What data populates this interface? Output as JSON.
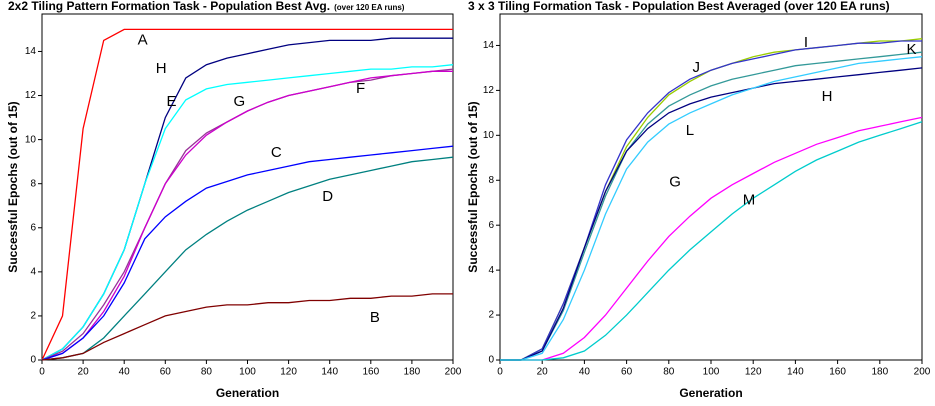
{
  "chart_data": [
    {
      "type": "line",
      "title": "2x2 Tiling Pattern Formation Task - Population Best Avg.",
      "subtitle": "(over 120 EA runs)",
      "x_label": "Generation",
      "y_label": "Successful Epochs (out of 15)",
      "x": [
        0,
        10,
        20,
        30,
        40,
        50,
        60,
        70,
        80,
        90,
        100,
        110,
        120,
        130,
        140,
        150,
        160,
        170,
        180,
        190,
        200
      ],
      "xlim": [
        0,
        200
      ],
      "xticks": [
        0,
        20,
        40,
        60,
        80,
        100,
        120,
        140,
        160,
        180,
        200
      ],
      "ylim": [
        0,
        15.7
      ],
      "yticks": [
        0,
        2,
        4,
        6,
        8,
        10,
        12,
        14
      ],
      "series": [
        {
          "name": "A",
          "color": "#ff0000",
          "values": [
            0,
            2,
            10.5,
            14.5,
            15,
            15,
            15,
            15,
            15,
            15,
            15,
            15,
            15,
            15,
            15,
            15,
            15,
            15,
            15,
            15,
            15
          ]
        },
        {
          "name": "H",
          "color": "#000080",
          "values": [
            0,
            0.5,
            1.5,
            3,
            5,
            8,
            11,
            12.8,
            13.4,
            13.7,
            13.9,
            14.1,
            14.3,
            14.4,
            14.5,
            14.5,
            14.5,
            14.6,
            14.6,
            14.6,
            14.6
          ]
        },
        {
          "name": "E",
          "color": "#00ffff",
          "values": [
            0,
            0.5,
            1.5,
            3,
            5,
            8,
            10.5,
            11.8,
            12.3,
            12.5,
            12.6,
            12.7,
            12.8,
            12.9,
            13,
            13.1,
            13.2,
            13.2,
            13.3,
            13.3,
            13.4
          ]
        },
        {
          "name": "G",
          "color": "#993399",
          "values": [
            0,
            0.4,
            1.2,
            2.5,
            4,
            6,
            8,
            9.5,
            10.3,
            10.8,
            11.3,
            11.7,
            12,
            12.2,
            12.4,
            12.6,
            12.7,
            12.9,
            13,
            13.1,
            13.2
          ]
        },
        {
          "name": "F",
          "color": "#cc00cc",
          "values": [
            0,
            0.3,
            1,
            2.2,
            3.8,
            6,
            8,
            9.3,
            10.2,
            10.8,
            11.3,
            11.7,
            12,
            12.2,
            12.4,
            12.6,
            12.8,
            12.9,
            13,
            13.1,
            13.1
          ]
        },
        {
          "name": "C",
          "color": "#0000ff",
          "values": [
            0,
            0.3,
            1,
            2,
            3.5,
            5.5,
            6.5,
            7.2,
            7.8,
            8.1,
            8.4,
            8.6,
            8.8,
            9,
            9.1,
            9.2,
            9.3,
            9.4,
            9.5,
            9.6,
            9.7
          ]
        },
        {
          "name": "D",
          "color": "#008080",
          "values": [
            0,
            0.1,
            0.3,
            1,
            2,
            3,
            4,
            5,
            5.7,
            6.3,
            6.8,
            7.2,
            7.6,
            7.9,
            8.2,
            8.4,
            8.6,
            8.8,
            9,
            9.1,
            9.2
          ]
        },
        {
          "name": "B",
          "color": "#800000",
          "values": [
            0,
            0.1,
            0.3,
            0.8,
            1.2,
            1.6,
            2,
            2.2,
            2.4,
            2.5,
            2.5,
            2.6,
            2.6,
            2.7,
            2.7,
            2.8,
            2.8,
            2.9,
            2.9,
            3,
            3
          ]
        }
      ]
    },
    {
      "type": "line",
      "title": "3 x 3 Tiling Formation Task - Population Best Averaged (over 120 EA runs)",
      "x_label": "Generation",
      "y_label": "Successful Epochs (out of 15)",
      "x": [
        0,
        10,
        20,
        30,
        40,
        50,
        60,
        70,
        80,
        90,
        100,
        110,
        120,
        130,
        140,
        150,
        160,
        170,
        180,
        190,
        200
      ],
      "xlim": [
        0,
        200
      ],
      "xticks": [
        0,
        20,
        40,
        60,
        80,
        100,
        120,
        140,
        160,
        180,
        200
      ],
      "ylim": [
        0,
        15.4
      ],
      "yticks": [
        0,
        2,
        4,
        6,
        8,
        10,
        12,
        14
      ],
      "series": [
        {
          "name": "J",
          "color": "#99cc00",
          "values": [
            0,
            0,
            0.5,
            2.5,
            5,
            7.5,
            9.5,
            10.8,
            11.8,
            12.4,
            12.9,
            13.2,
            13.5,
            13.7,
            13.8,
            13.9,
            14,
            14.1,
            14.2,
            14.2,
            14.3
          ]
        },
        {
          "name": "I",
          "color": "#3333cc",
          "values": [
            0,
            0,
            0.5,
            2.5,
            5,
            7.8,
            9.8,
            11,
            11.9,
            12.5,
            12.9,
            13.2,
            13.4,
            13.6,
            13.8,
            13.9,
            14,
            14.1,
            14.1,
            14.2,
            14.2
          ]
        },
        {
          "name": "K",
          "color": "#339999",
          "values": [
            0,
            0,
            0.4,
            2.2,
            4.8,
            7.3,
            9.3,
            10.5,
            11.3,
            11.8,
            12.2,
            12.5,
            12.7,
            12.9,
            13.1,
            13.2,
            13.3,
            13.4,
            13.5,
            13.6,
            13.7
          ]
        },
        {
          "name": "H",
          "color": "#000080",
          "values": [
            0,
            0,
            0.4,
            2.3,
            5,
            7.5,
            9.3,
            10.3,
            11,
            11.4,
            11.7,
            11.9,
            12.1,
            12.3,
            12.4,
            12.5,
            12.6,
            12.7,
            12.8,
            12.9,
            13
          ]
        },
        {
          "name": "L",
          "color": "#33ccff",
          "values": [
            0,
            0,
            0.3,
            1.8,
            4,
            6.5,
            8.5,
            9.7,
            10.5,
            11,
            11.4,
            11.8,
            12.1,
            12.4,
            12.6,
            12.8,
            13,
            13.2,
            13.3,
            13.4,
            13.5
          ]
        },
        {
          "name": "G",
          "color": "#ff00ff",
          "values": [
            0,
            0,
            0,
            0.3,
            1,
            2,
            3.2,
            4.4,
            5.5,
            6.4,
            7.2,
            7.8,
            8.3,
            8.8,
            9.2,
            9.6,
            9.9,
            10.2,
            10.4,
            10.6,
            10.8
          ]
        },
        {
          "name": "M",
          "color": "#00cccc",
          "values": [
            0,
            0,
            0,
            0.1,
            0.4,
            1.1,
            2,
            3,
            4,
            4.9,
            5.7,
            6.5,
            7.2,
            7.8,
            8.4,
            8.9,
            9.3,
            9.7,
            10,
            10.3,
            10.6
          ]
        }
      ]
    }
  ]
}
